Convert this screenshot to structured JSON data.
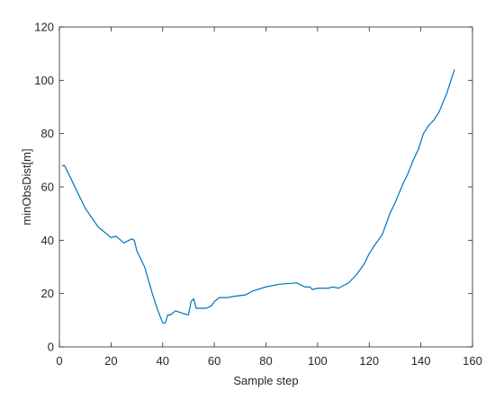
{
  "chart_data": {
    "type": "line",
    "x_label": "Sample step",
    "y_label": "minObsDist[m]",
    "x": [
      1,
      2,
      5,
      10,
      15,
      20,
      22,
      25,
      27,
      28,
      29,
      30,
      33,
      36,
      38,
      40,
      41,
      42,
      43,
      45,
      48,
      50,
      51,
      52,
      53,
      57,
      59,
      60,
      62,
      65,
      68,
      72,
      75,
      80,
      85,
      92,
      95,
      97,
      98,
      100,
      102,
      104,
      106,
      108,
      110,
      112,
      115,
      118,
      120,
      122,
      125,
      128,
      130,
      133,
      135,
      137,
      139,
      141,
      143,
      145,
      147,
      150,
      153
    ],
    "series": [
      {
        "color": "#0072bd",
        "values": [
          68,
          68,
          62,
          52,
          45,
          41,
          41.5,
          39,
          40,
          40.5,
          40,
          36,
          30,
          20,
          14,
          9,
          9,
          12,
          12,
          13.5,
          12.5,
          12,
          17,
          18,
          14.5,
          14.5,
          15.5,
          17,
          18.5,
          18.5,
          19,
          19.5,
          21,
          22.5,
          23.5,
          24,
          22.5,
          22.5,
          21.5,
          22,
          22,
          22,
          22.5,
          22,
          23,
          24,
          27,
          31,
          35,
          38,
          42,
          50,
          54,
          61,
          65,
          70,
          74,
          80,
          83,
          85,
          88,
          95,
          104
        ]
      }
    ],
    "xlim": [
      0,
      160
    ],
    "xticks": [
      0,
      20,
      40,
      60,
      80,
      100,
      120,
      140,
      160
    ],
    "ylim": [
      0,
      120
    ],
    "yticks": [
      0,
      20,
      40,
      60,
      80,
      100,
      120
    ]
  }
}
